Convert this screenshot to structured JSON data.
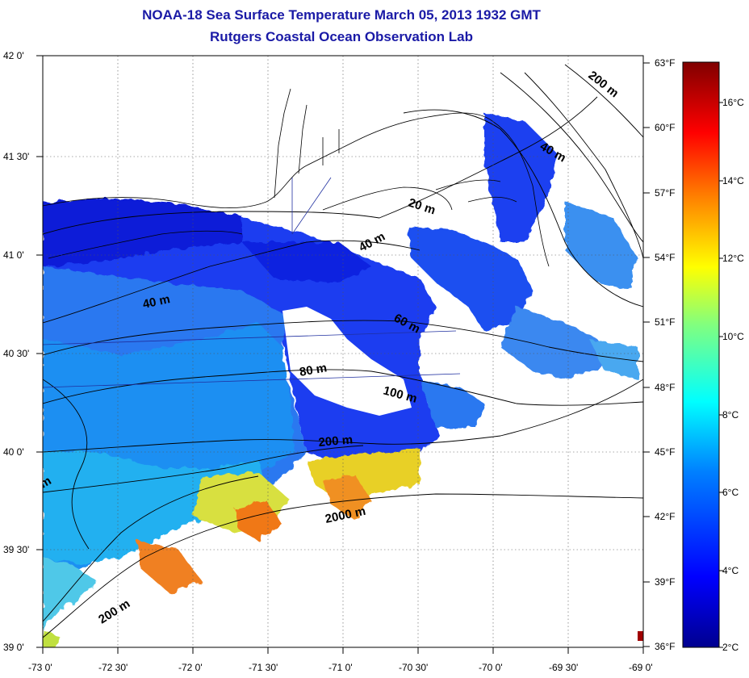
{
  "title": {
    "line1": "NOAA-18 Sea Surface Temperature March 05, 2013 1932 GMT",
    "line2": "Rutgers Coastal Ocean Observation Lab"
  },
  "map": {
    "lat_labels": [
      "42 0'",
      "41 30'",
      "41 0'",
      "40 30'",
      "40 0'",
      "39 30'",
      "39 0'"
    ],
    "lon_labels": [
      "-73 0'",
      "-72 30'",
      "-72 0'",
      "-71 30'",
      "-71 0'",
      "-70 30'",
      "-70 0'",
      "-69 30'",
      "-69 0'"
    ],
    "lat_range": [
      39.0,
      42.0
    ],
    "lon_range": [
      -73.0,
      -69.0
    ],
    "contour_labels": [
      "200 m",
      "40 m",
      "20 m",
      "40 m",
      "40 m",
      "60 m",
      "80 m",
      "100 m",
      "200 m",
      "2000 m",
      "200 m",
      "m"
    ]
  },
  "colorbar": {
    "fahrenheit_labels": [
      "63°F",
      "60°F",
      "57°F",
      "54°F",
      "51°F",
      "48°F",
      "45°F",
      "42°F",
      "39°F",
      "36°F"
    ],
    "celsius_labels": [
      "16°C",
      "14°C",
      "12°C",
      "10°C",
      "8°C",
      "6°C",
      "4°C",
      "2°C"
    ],
    "range_celsius": [
      2,
      17.2
    ],
    "colors": [
      "#00008f",
      "#0000ff",
      "#0080ff",
      "#00ffff",
      "#80ff80",
      "#ffff00",
      "#ff8000",
      "#ff0000",
      "#800000"
    ]
  }
}
